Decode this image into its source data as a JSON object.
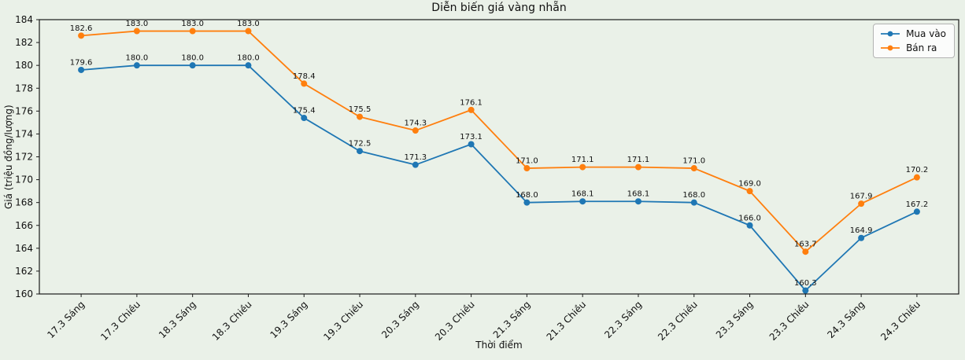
{
  "figure": {
    "background": "#eaf1e8",
    "plot_background": "#eaf1e8",
    "spine_color": "#1a1a1a",
    "text_color": "#111111"
  },
  "chart_data": {
    "type": "line",
    "title": "Diễn biến giá vàng nhẵn",
    "xlabel": "Thời điểm",
    "ylabel": "Giá (triệu đồng/lượng)",
    "categories": [
      "17.3 Sáng",
      "17.3 Chiều",
      "18.3 Sáng",
      "18.3 Chiều",
      "19.3 Sáng",
      "19.3 Chiều",
      "20.3 Sáng",
      "20.3 Chiều",
      "21.3 Sáng",
      "21.3 Chiều",
      "22.3 Sáng",
      "22.3 Chiều",
      "23.3 Sáng",
      "23.3 Chiều",
      "24.3 Sáng",
      "24.3 Chiều"
    ],
    "series": [
      {
        "name": "Mua vào",
        "color": "#1f77b4",
        "values": [
          179.6,
          180.0,
          180.0,
          180.0,
          175.4,
          172.5,
          171.3,
          173.1,
          168.0,
          168.1,
          168.1,
          168.0,
          166.0,
          160.3,
          164.9,
          167.2
        ]
      },
      {
        "name": "Bán ra",
        "color": "#ff7f0e",
        "values": [
          182.6,
          183.0,
          183.0,
          183.0,
          178.4,
          175.5,
          174.3,
          176.1,
          171.0,
          171.1,
          171.1,
          171.0,
          169.0,
          163.7,
          167.9,
          170.2
        ]
      }
    ],
    "ylim": [
      160,
      184
    ],
    "ytick_step": 2,
    "point_label_format": "1-decimal",
    "grid": false,
    "legend_position": "upper right"
  }
}
